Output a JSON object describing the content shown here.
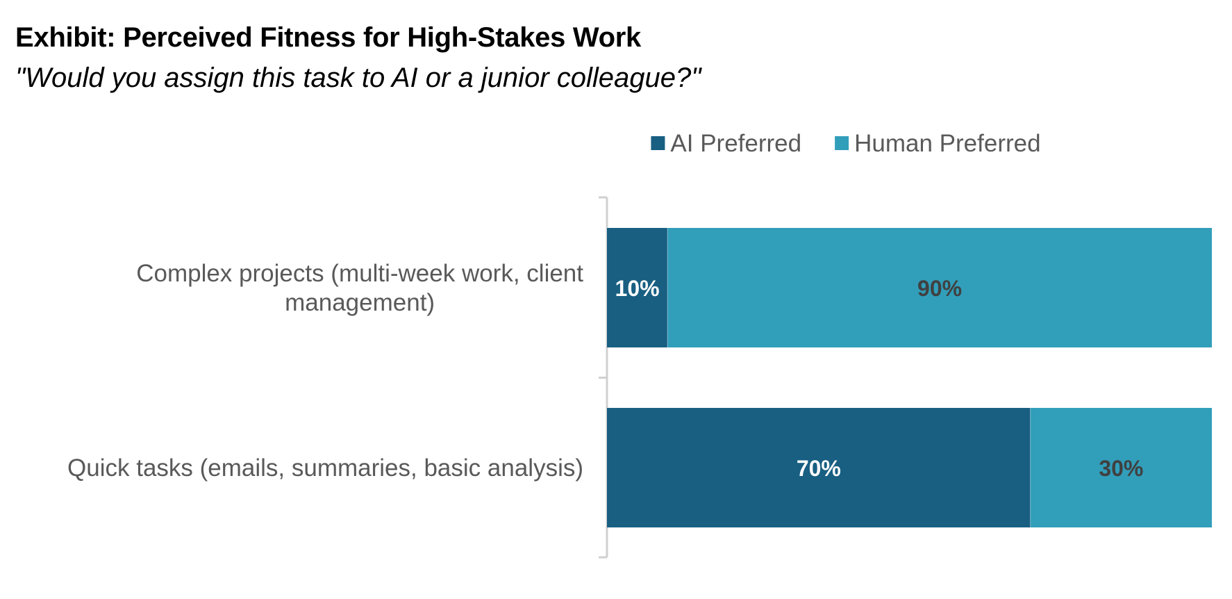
{
  "title": "Exhibit: Perceived Fitness for High-Stakes Work",
  "subtitle": "\"Would you assign this task to AI or a junior colleague?\"",
  "colors": {
    "ai_preferred": "#185F82",
    "human_preferred": "#319EBA",
    "axis": "#D0D0D0",
    "category_text": "#595959",
    "legend_text": "#595959",
    "label_on_dark": "#FFFFFF",
    "label_on_light": "#404040"
  },
  "chart_data": {
    "type": "bar",
    "orientation": "horizontal",
    "stacking": "percent",
    "title": "Exhibit: Perceived Fitness for High-Stakes Work",
    "subtitle": "\"Would you assign this task to AI or a junior colleague?\"",
    "xlabel": "",
    "ylabel": "",
    "xlim": [
      0,
      100
    ],
    "grid": false,
    "legend": "top-center",
    "categories": [
      {
        "label_lines": [
          "Complex projects (multi-week work, client",
          "management)"
        ],
        "label": "Complex projects (multi-week work, client management)"
      },
      {
        "label_lines": [
          "Quick tasks (emails, summaries, basic analysis)"
        ],
        "label": "Quick tasks (emails, summaries, basic analysis)"
      }
    ],
    "series": [
      {
        "name": "AI Preferred",
        "color": "#185F82",
        "values": [
          10,
          70
        ],
        "data_labels": [
          "10%",
          "70%"
        ]
      },
      {
        "name": "Human Preferred",
        "color": "#319EBA",
        "values": [
          90,
          30
        ],
        "data_labels": [
          "90%",
          "30%"
        ]
      }
    ]
  }
}
